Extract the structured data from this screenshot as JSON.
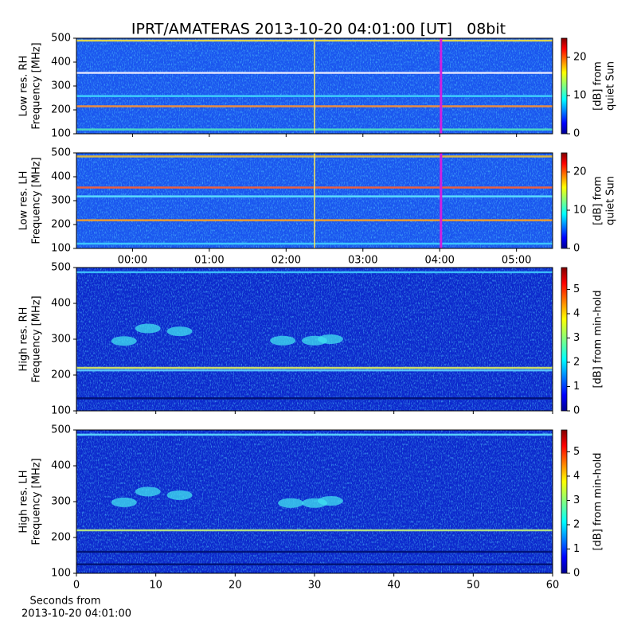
{
  "title": "IPRT/AMATERAS 2013-10-20 04:01:00 [UT]   08bit",
  "chart_data": [
    {
      "type": "spectrogram",
      "ylabel": [
        "Low res. RH",
        "Frequency [MHz]"
      ],
      "xlim": [
        -0.73,
        5.47
      ],
      "xticks": [
        {
          "value": 0,
          "label": "00:00"
        },
        {
          "value": 1,
          "label": "01:00"
        },
        {
          "value": 2,
          "label": "02:00"
        },
        {
          "value": 3,
          "label": "03:00"
        },
        {
          "value": 4,
          "label": "04:00"
        },
        {
          "value": 5,
          "label": "05:00"
        }
      ],
      "xtick_labels": false,
      "ylim": [
        100,
        500
      ],
      "yticks": [
        100,
        200,
        300,
        400,
        500
      ],
      "background": "#1a55ee",
      "bands": [
        {
          "freq": 490,
          "color": "#f0e040"
        },
        {
          "freq": 355,
          "color": "#f4f0ff"
        },
        {
          "freq": 258,
          "color": "#40d8ff"
        },
        {
          "freq": 215,
          "color": "#ff9030"
        },
        {
          "freq": 118,
          "color": "#50e0c0"
        }
      ],
      "spikes": [
        2.37
      ],
      "marker": 4.0167,
      "marker_color": "#d020e0",
      "clim": [
        0,
        25
      ],
      "cbticks": [
        0,
        10,
        20
      ],
      "cblabel": [
        "[dB] from",
        "quiet Sun"
      ]
    },
    {
      "type": "spectrogram",
      "ylabel": [
        "Low res. LH",
        "Frequency [MHz]"
      ],
      "xlim": [
        -0.73,
        5.47
      ],
      "xticks": [
        {
          "value": 0,
          "label": "00:00"
        },
        {
          "value": 1,
          "label": "01:00"
        },
        {
          "value": 2,
          "label": "02:00"
        },
        {
          "value": 3,
          "label": "03:00"
        },
        {
          "value": 4,
          "label": "04:00"
        },
        {
          "value": 5,
          "label": "05:00"
        }
      ],
      "xtick_labels": true,
      "ylim": [
        100,
        500
      ],
      "yticks": [
        100,
        200,
        300,
        400,
        500
      ],
      "background": "#1a55ee",
      "bands": [
        {
          "freq": 485,
          "color": "#f0c030"
        },
        {
          "freq": 355,
          "color": "#ff6030"
        },
        {
          "freq": 318,
          "color": "#60e8ff"
        },
        {
          "freq": 218,
          "color": "#ffa020"
        },
        {
          "freq": 120,
          "color": "#40d0ff"
        }
      ],
      "spikes": [
        2.37
      ],
      "marker": 4.0167,
      "marker_color": "#d020e0",
      "clim": [
        0,
        25
      ],
      "cbticks": [
        0,
        10,
        20
      ],
      "cblabel": [
        "[dB] from",
        "quiet Sun"
      ]
    },
    {
      "type": "spectrogram",
      "ylabel": [
        "High res. RH",
        "Frequency [MHz]"
      ],
      "xlim": [
        0,
        60
      ],
      "xticks": [
        0,
        10,
        20,
        30,
        40,
        50,
        60
      ],
      "xtick_labels": false,
      "ylim": [
        100,
        500
      ],
      "yticks": [
        100,
        200,
        300,
        400,
        500
      ],
      "background": "#0c28cc",
      "bands": [
        {
          "freq": 487,
          "color": "#40c8ff"
        },
        {
          "freq": 220,
          "color": "#e0f060"
        },
        {
          "freq": 213,
          "color": "#60d0ff"
        },
        {
          "freq": 135,
          "color": "#001070"
        }
      ],
      "bursts": [
        {
          "x": 6,
          "y": 295
        },
        {
          "x": 9,
          "y": 330
        },
        {
          "x": 13,
          "y": 322
        },
        {
          "x": 26,
          "y": 296
        },
        {
          "x": 30,
          "y": 296
        },
        {
          "x": 32,
          "y": 300
        }
      ],
      "clim": [
        0,
        5.9
      ],
      "cbticks": [
        0,
        1,
        2,
        3,
        4,
        5
      ],
      "cblabel": [
        "[dB] from min-hold"
      ]
    },
    {
      "type": "spectrogram",
      "ylabel": [
        "High res. LH",
        "Frequency [MHz]"
      ],
      "xlim": [
        0,
        60
      ],
      "xticks": [
        0,
        10,
        20,
        30,
        40,
        50,
        60
      ],
      "xtick_labels": true,
      "ylim": [
        100,
        500
      ],
      "yticks": [
        100,
        200,
        300,
        400,
        500
      ],
      "background": "#0c28cc",
      "bands": [
        {
          "freq": 487,
          "color": "#60e0ff"
        },
        {
          "freq": 220,
          "color": "#c0f080"
        },
        {
          "freq": 160,
          "color": "#001070"
        },
        {
          "freq": 125,
          "color": "#001070"
        }
      ],
      "bursts": [
        {
          "x": 6,
          "y": 298
        },
        {
          "x": 9,
          "y": 328
        },
        {
          "x": 13,
          "y": 318
        },
        {
          "x": 27,
          "y": 296
        },
        {
          "x": 30,
          "y": 296
        },
        {
          "x": 32,
          "y": 302
        }
      ],
      "clim": [
        0,
        5.9
      ],
      "cbticks": [
        0,
        1,
        2,
        3,
        4,
        5
      ],
      "cblabel": [
        "[dB] from min-hold"
      ],
      "xlabel": [
        "Seconds from",
        "2013-10-20 04:01:00"
      ]
    }
  ]
}
